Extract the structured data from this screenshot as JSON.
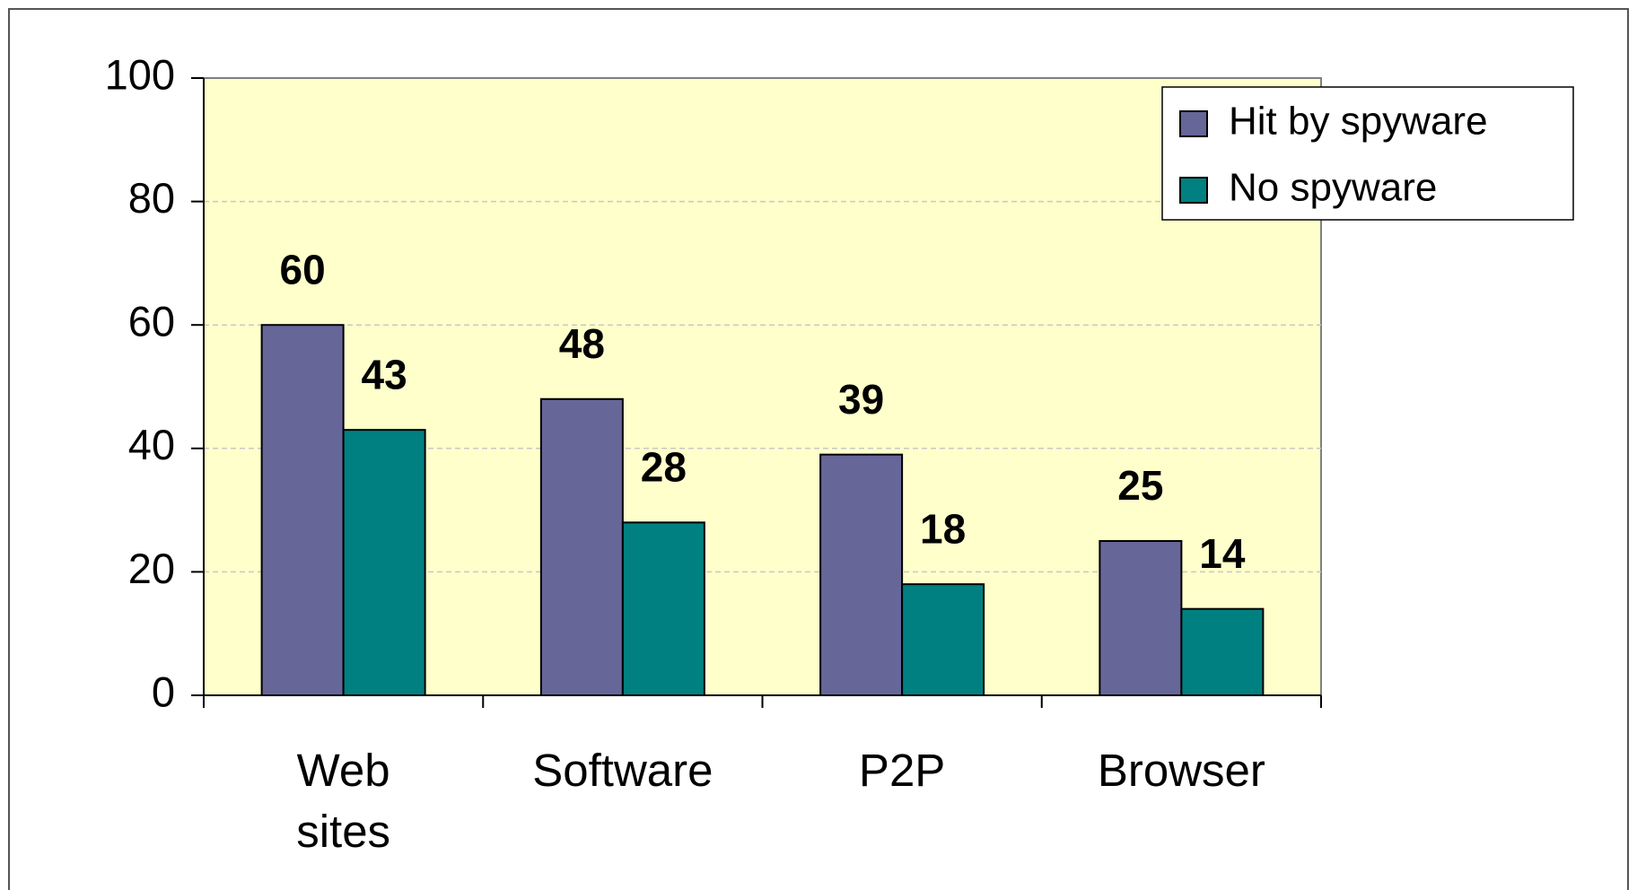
{
  "chart_data": {
    "type": "bar",
    "categories": [
      "Web sites",
      "Software",
      "P2P",
      "Browser"
    ],
    "series": [
      {
        "name": "Hit by spyware",
        "color": "#666699",
        "values": [
          60,
          48,
          39,
          25
        ]
      },
      {
        "name": "No spyware",
        "color": "#008080",
        "values": [
          43,
          28,
          18,
          14
        ]
      }
    ],
    "ylim": [
      0,
      100
    ],
    "yticks": [
      0,
      20,
      40,
      60,
      80,
      100
    ],
    "grid": true,
    "legend": "top-right"
  }
}
